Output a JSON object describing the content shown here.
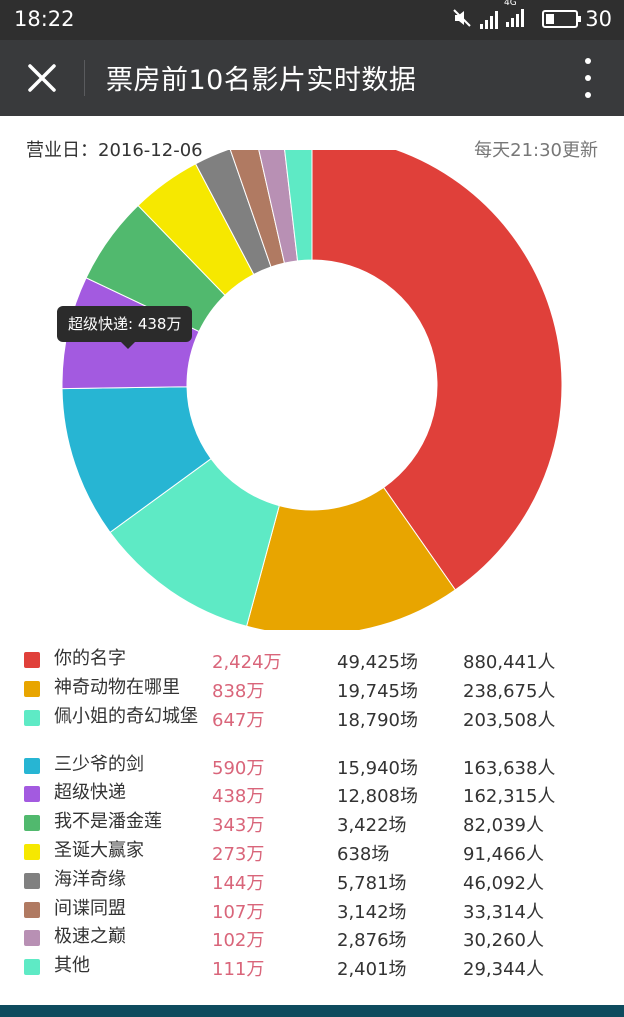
{
  "status_bar": {
    "time": "18:22",
    "battery": "30",
    "battery_level": 0.3,
    "network": "4G"
  },
  "title_bar": {
    "title": "票房前10名影片实时数据"
  },
  "header": {
    "business_date": "营业日：2016-12-06",
    "update_note": "每天21:30更新"
  },
  "tooltip": {
    "text": "超级快递: 438万"
  },
  "chart_data": {
    "type": "pie",
    "donut": true,
    "categories": [
      "你的名字",
      "神奇动物在哪里",
      "佩小姐的奇幻城堡",
      "三少爷的剑",
      "超级快递",
      "我不是潘金莲",
      "圣诞大赢家",
      "海洋奇缘",
      "间谍同盟",
      "极速之巅",
      "其他"
    ],
    "values": [
      2424,
      838,
      647,
      590,
      438,
      343,
      273,
      144,
      107,
      102,
      111
    ],
    "colors": [
      "#e0403a",
      "#e8a500",
      "#5eeac5",
      "#27b5d3",
      "#a35ae0",
      "#51b96e",
      "#f6e800",
      "#808080",
      "#b07a62",
      "#b890b4",
      "#5eeac5"
    ],
    "unit": "万"
  },
  "table": {
    "rows": [
      {
        "name": "你的名字",
        "box": "2,424万",
        "shows": "49,425场",
        "people": "880,441人",
        "color": "#e0403a"
      },
      {
        "name": "神奇动物在哪里",
        "box": "838万",
        "shows": "19,745场",
        "people": "238,675人",
        "color": "#e8a500"
      },
      {
        "name": "佩小姐的奇幻城堡",
        "box": "647万",
        "shows": "18,790场",
        "people": "203,508人",
        "color": "#5eeac5"
      },
      {
        "name": "三少爷的剑",
        "box": "590万",
        "shows": "15,940场",
        "people": "163,638人",
        "color": "#27b5d3"
      },
      {
        "name": "超级快递",
        "box": "438万",
        "shows": "12,808场",
        "people": "162,315人",
        "color": "#a35ae0"
      },
      {
        "name": "我不是潘金莲",
        "box": "343万",
        "shows": "3,422场",
        "people": "82,039人",
        "color": "#51b96e"
      },
      {
        "name": "圣诞大赢家",
        "box": "273万",
        "shows": "638场",
        "people": "91,466人",
        "color": "#f6e800"
      },
      {
        "name": "海洋奇缘",
        "box": "144万",
        "shows": "5,781场",
        "people": "46,092人",
        "color": "#808080"
      },
      {
        "name": "间谍同盟",
        "box": "107万",
        "shows": "3,142场",
        "people": "33,314人",
        "color": "#b07a62"
      },
      {
        "name": "极速之巅",
        "box": "102万",
        "shows": "2,876场",
        "people": "30,260人",
        "color": "#b890b4"
      },
      {
        "name": "其他",
        "box": "111万",
        "shows": "2,401场",
        "people": "29,344人",
        "color": "#5eeac5"
      }
    ]
  }
}
